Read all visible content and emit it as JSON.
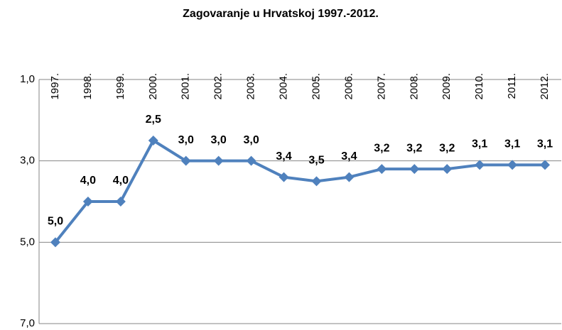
{
  "chart_data": {
    "type": "line",
    "title": "Zagovaranje u Hrvatskoj 1997.-2012.",
    "categories": [
      "1997.",
      "1998.",
      "1999.",
      "2000.",
      "2001.",
      "2002.",
      "2003.",
      "2004.",
      "2005.",
      "2006.",
      "2007.",
      "2008.",
      "2009.",
      "2010.",
      "2011.",
      "2012."
    ],
    "values": [
      5.0,
      4.0,
      4.0,
      2.5,
      3.0,
      3.0,
      3.0,
      3.4,
      3.5,
      3.4,
      3.2,
      3.2,
      3.2,
      3.1,
      3.1,
      3.1
    ],
    "value_labels": [
      "5,0",
      "4,0",
      "4,0",
      "2,5",
      "3,0",
      "3,0",
      "3,0",
      "3,4",
      "3,5",
      "3,4",
      "3,2",
      "3,2",
      "3,2",
      "3,1",
      "3,1",
      "3,1"
    ],
    "color": "#4f81bd",
    "ylim": [
      1,
      7
    ],
    "y_inverted": true,
    "yticks": [
      {
        "value": 1,
        "label": "1,0"
      },
      {
        "value": 3,
        "label": "3,0"
      },
      {
        "value": 5,
        "label": "5,0"
      },
      {
        "value": 7,
        "label": "7,0"
      }
    ],
    "grid": true
  }
}
